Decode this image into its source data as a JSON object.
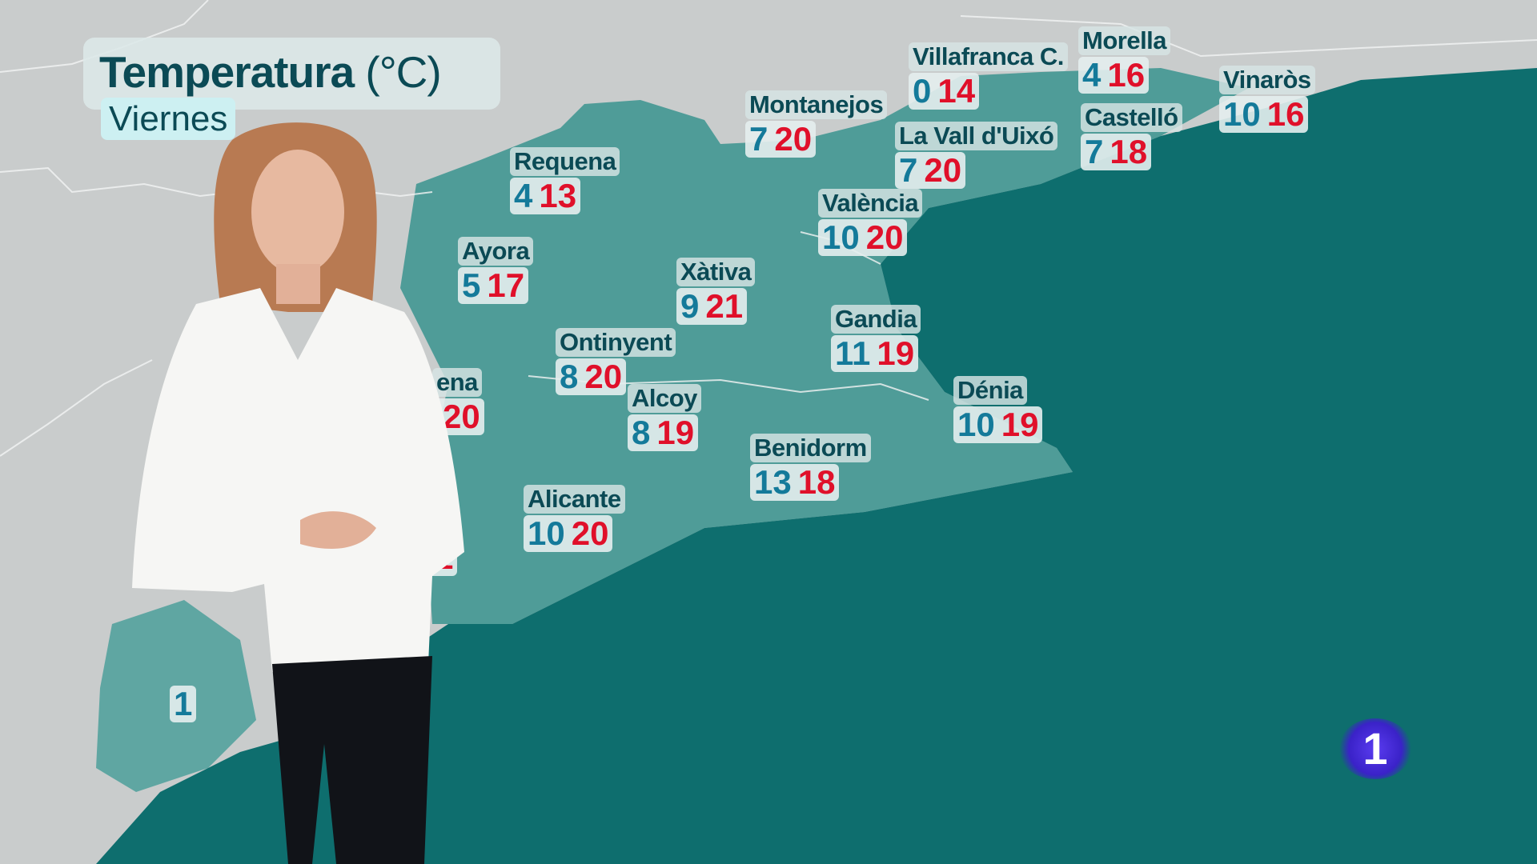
{
  "header": {
    "title": "Temperatura",
    "unit": "(°C)",
    "day": "Viernes"
  },
  "colors": {
    "sea": "#0e6e6e",
    "region": "#4f9c98",
    "land": "#c9cccc",
    "low": "#147a9a",
    "high": "#e0102a",
    "title": "#0b4a55"
  },
  "cities": [
    {
      "name": "Requena",
      "low": "4",
      "high": "13"
    },
    {
      "name": "Ayora",
      "low": "5",
      "high": "17"
    },
    {
      "name": "Xàtiva",
      "low": "9",
      "high": "21"
    },
    {
      "name": "Ontinyent",
      "low": "8",
      "high": "20"
    },
    {
      "name": "Alcoy",
      "low": "8",
      "high": "19"
    },
    {
      "name": "Montanejos",
      "low": "7",
      "high": "20"
    },
    {
      "name": "Villafranca C.",
      "low": "0",
      "high": "14"
    },
    {
      "name": "Morella",
      "low": "4",
      "high": "16"
    },
    {
      "name": "Vinaròs",
      "low": "10",
      "high": "16"
    },
    {
      "name": "Castelló",
      "low": "7",
      "high": "18"
    },
    {
      "name": "La Vall d'Uixó",
      "low": "7",
      "high": "20"
    },
    {
      "name": "València",
      "low": "10",
      "high": "20"
    },
    {
      "name": "Gandia",
      "low": "11",
      "high": "19"
    },
    {
      "name": "Dénia",
      "low": "10",
      "high": "19"
    },
    {
      "name": "Benidorm",
      "low": "13",
      "high": "18"
    },
    {
      "name": "Alicante",
      "low": "10",
      "high": "20"
    }
  ],
  "partial_labels": [
    {
      "name": "ena",
      "high": "20"
    },
    {
      "high": "1"
    },
    {
      "low": "1"
    }
  ],
  "logo": {
    "text": "1"
  }
}
